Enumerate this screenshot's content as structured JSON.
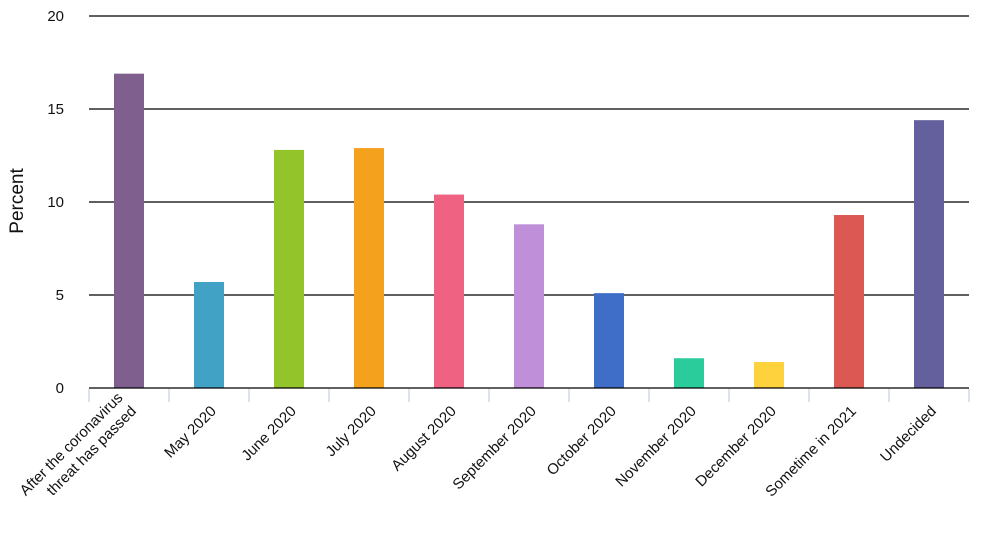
{
  "chart_data": {
    "type": "bar",
    "ylabel": "Percent",
    "ylim": [
      0,
      20
    ],
    "yticks": [
      0,
      5,
      10,
      15,
      20
    ],
    "grid": true,
    "categories": [
      [
        "After the coronavirus",
        "threat has passed"
      ],
      [
        "May 2020"
      ],
      [
        "June 2020"
      ],
      [
        "July 2020"
      ],
      [
        "August 2020"
      ],
      [
        "September 2020"
      ],
      [
        "October 2020"
      ],
      [
        "November 2020"
      ],
      [
        "December 2020"
      ],
      [
        "Sometime in 2021"
      ],
      [
        "Undecided"
      ]
    ],
    "values": [
      16.9,
      5.7,
      12.8,
      12.9,
      10.4,
      8.8,
      5.1,
      1.6,
      1.4,
      9.3,
      14.4
    ],
    "colors": [
      "#7f5f8e",
      "#42a2c6",
      "#93c52a",
      "#f4a21e",
      "#f06282",
      "#c08fd9",
      "#3e6ec7",
      "#2bcc9c",
      "#fdd23d",
      "#dc5852",
      "#64609d"
    ]
  }
}
